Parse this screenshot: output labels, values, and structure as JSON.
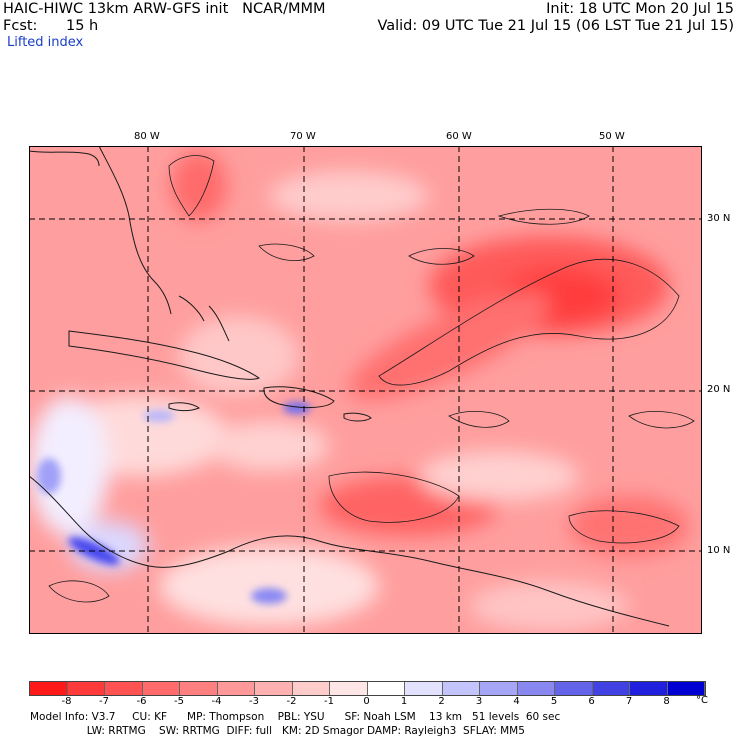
{
  "header": {
    "model_title": "HAIC-HIWC 13km ARW-GFS init   NCAR/MMM",
    "forecast_label": "Fcst:",
    "forecast_value": "15 h",
    "field_name": "Lifted index",
    "init_time": "Init: 18 UTC Mon 20 Jul 15",
    "valid_time": "Valid: 09 UTC Tue 21 Jul 15 (06 LST Tue 21 Jul 15)"
  },
  "map": {
    "longitude_labels": [
      "80 W",
      "70 W",
      "60 W",
      "50 W"
    ],
    "latitude_labels": [
      "30 N",
      "20 N",
      "10 N"
    ],
    "grid_style": "dashed",
    "region": "Caribbean / western tropical Atlantic"
  },
  "colorbar": {
    "unit": "°C",
    "tick_labels": [
      "-8",
      "-7",
      "-6",
      "-5",
      "-4",
      "-3",
      "-2",
      "-1",
      "0",
      "1",
      "2",
      "3",
      "4",
      "5",
      "6",
      "7",
      "8"
    ],
    "colors": [
      "#ff1a1a",
      "#ff3a3a",
      "#ff5353",
      "#ff6b6b",
      "#ff8080",
      "#ff9898",
      "#ffb0b0",
      "#ffcccc",
      "#ffe6e6",
      "#ffffff",
      "#e2e2ff",
      "#c4c4fc",
      "#a6a6f6",
      "#8888f0",
      "#6464ea",
      "#4242e4",
      "#2020de",
      "#0000d2"
    ]
  },
  "model_info": {
    "line1": "Model Info: V3.7     CU: KF      MP: Thompson    PBL: YSU      SF: Noah LSM    13 km   51 levels  60 sec",
    "line2": "                 LW: RRTMG    SW: RRTMG  DIFF: full   KM: 2D Smagor DAMP: Rayleigh3  SFLAY: MM5"
  }
}
